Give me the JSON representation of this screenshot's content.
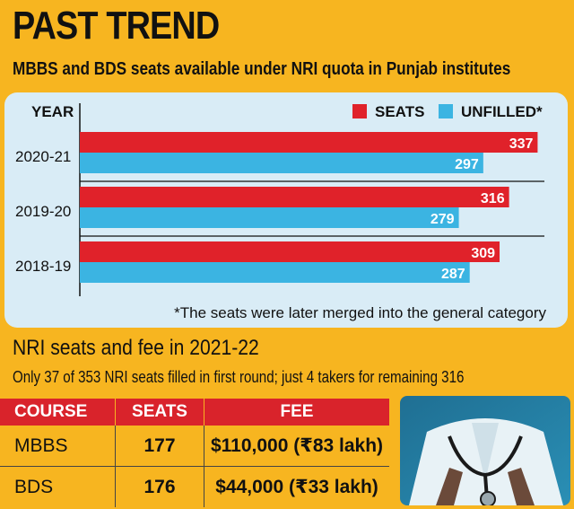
{
  "header": {
    "title": "PAST TREND",
    "subtitle": "MBBS and BDS seats available under NRI quota in Punjab institutes"
  },
  "chart_data": {
    "type": "bar",
    "orientation": "horizontal",
    "ylabel": "YEAR",
    "categories": [
      "2020-21",
      "2019-20",
      "2018-19"
    ],
    "series": [
      {
        "name": "SEATS",
        "values": [
          337,
          316,
          309
        ],
        "color": "#e0222a"
      },
      {
        "name": "UNFILLED*",
        "values": [
          297,
          279,
          287
        ],
        "color": "#3bb4e2"
      }
    ],
    "xlim": [
      0,
      342
    ],
    "legend_position": "top-right",
    "footnote": "*The seats were later merged into the general category"
  },
  "section2": {
    "title": "NRI seats and fee in 2021-22",
    "subtitle": "Only 37 of 353 NRI seats filled in first round; just 4 takers for remaining 316"
  },
  "table": {
    "headers": [
      "COURSE",
      "SEATS",
      "FEE"
    ],
    "rows": [
      {
        "course": "MBBS",
        "seats": "177",
        "fee": "$110,000 (₹83 lakh)"
      },
      {
        "course": "BDS",
        "seats": "176",
        "fee": "$44,000 (₹33 lakh)"
      }
    ]
  },
  "colors": {
    "background": "#f7b520",
    "panel": "#d9ecf6",
    "seats": "#e0222a",
    "unfilled": "#3bb4e2",
    "table_header": "#d9232b"
  },
  "photo": {
    "icon": "doctor-with-stethoscope-photo"
  }
}
